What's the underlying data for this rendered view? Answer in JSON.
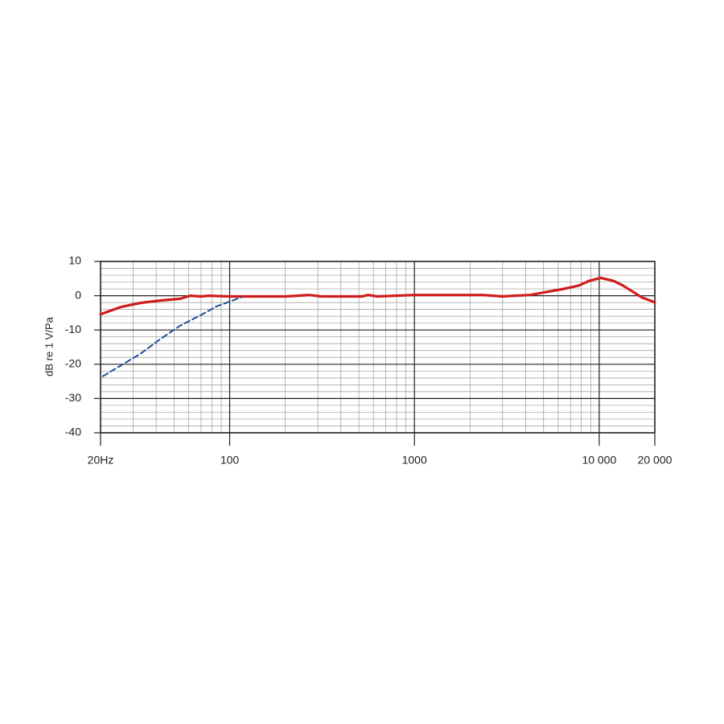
{
  "chart_data": {
    "type": "line",
    "ylabel": "dB re 1 V/Pa",
    "xscale": "log",
    "xlim": [
      20,
      20000
    ],
    "ylim": [
      -40,
      10
    ],
    "xticks": [
      {
        "value": 20,
        "label": "20Hz"
      },
      100,
      1000,
      {
        "value": 10000,
        "label": "10 000"
      },
      {
        "value": 20000,
        "label": "20 000"
      }
    ],
    "yticks": [
      10,
      0,
      -10,
      -20,
      -30,
      -40
    ],
    "x_minor_grid": [
      30,
      40,
      50,
      60,
      70,
      80,
      90,
      200,
      300,
      400,
      500,
      600,
      700,
      800,
      900,
      2000,
      3000,
      4000,
      5000,
      6000,
      7000,
      8000,
      9000
    ],
    "y_minor_grid": [
      8,
      6,
      4,
      2,
      -2,
      -4,
      -6,
      -8,
      -12,
      -14,
      -16,
      -18,
      -22,
      -24,
      -26,
      -28,
      -32,
      -34,
      -36,
      -38
    ],
    "grid": true,
    "series": [
      {
        "color": "#d01c1c",
        "style": "solid",
        "x": [
          20,
          25.7,
          33,
          42,
          54,
          61,
          70,
          77,
          100,
          128,
          200,
          270,
          314,
          520,
          560,
          630,
          1000,
          2340,
          3000,
          3480,
          4240,
          5170,
          6300,
          7700,
          8900,
          10200,
          12000,
          13400,
          15500,
          17000,
          20000
        ],
        "values": [
          -5.4,
          -3.3,
          -2.1,
          -1.4,
          -0.9,
          0,
          -0.2,
          0,
          -0.2,
          -0.2,
          -0.2,
          0.2,
          -0.2,
          -0.2,
          0.2,
          -0.2,
          0.2,
          0.2,
          -0.2,
          0,
          0.2,
          1.1,
          1.9,
          2.9,
          4.4,
          5.2,
          4.3,
          3,
          0.9,
          -0.5,
          -1.9
        ]
      },
      {
        "color": "#1f4e96",
        "style": "dashed",
        "x": [
          20.6,
          25.7,
          33,
          42,
          54,
          70,
          85,
          115
        ],
        "values": [
          -23.5,
          -20.4,
          -16.9,
          -12.7,
          -8.7,
          -5.6,
          -3.1,
          -0.5
        ]
      }
    ]
  }
}
